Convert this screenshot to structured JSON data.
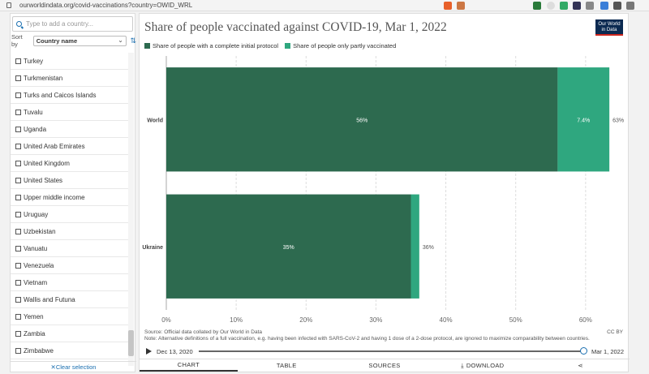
{
  "browser": {
    "url": "ourworldindata.org/covid-vaccinations?country=OWID_WRL"
  },
  "sidebar": {
    "search_placeholder": "Type to add a country...",
    "sort_label": "Sort by",
    "sort_value": "Country name",
    "items": [
      "Turkey",
      "Turkmenistan",
      "Turks and Caicos Islands",
      "Tuvalu",
      "Uganda",
      "United Arab Emirates",
      "United Kingdom",
      "United States",
      "Upper middle income",
      "Uruguay",
      "Uzbekistan",
      "Vanuatu",
      "Venezuela",
      "Vietnam",
      "Wallis and Futuna",
      "Yemen",
      "Zambia",
      "Zimbabwe"
    ],
    "clear_label": "✕Clear selection"
  },
  "main": {
    "logo_line1": "Our World",
    "logo_line2": "in Data",
    "source": "Source: Official data collated by Our World in Data",
    "note": "Note: Alternative definitions of a full vaccination, e.g. having been infected with SARS-CoV-2 and having 1 dose of a 2-dose protocol, are ignored to maximize comparability between countries.",
    "license": "CC BY",
    "timeline_start": "Dec 13, 2020",
    "timeline_end": "Mar 1, 2022",
    "tabs": [
      "CHART",
      "TABLE",
      "SOURCES",
      "DOWNLOAD",
      ""
    ]
  },
  "colors": {
    "complete": "#2d6a4f",
    "partial": "#2fa77f"
  },
  "chart_data": {
    "type": "bar",
    "orientation": "horizontal",
    "stacked": true,
    "title": "Share of people vaccinated against COVID-19, Mar 1, 2022",
    "categories": [
      "World",
      "Ukraine"
    ],
    "series": [
      {
        "name": "Share of people with a complete initial protocol",
        "values": [
          56,
          35
        ],
        "labels": [
          "56%",
          "35%"
        ]
      },
      {
        "name": "Share of people only partly vaccinated",
        "values": [
          7.4,
          1.2
        ],
        "labels": [
          "7.4%",
          ""
        ]
      }
    ],
    "totals": [
      "63%",
      "36%"
    ],
    "xlim": [
      0,
      63.5
    ],
    "xticks": [
      "0%",
      "10%",
      "20%",
      "30%",
      "40%",
      "50%",
      "60%"
    ],
    "grid": true,
    "legend_position": "top-left"
  }
}
